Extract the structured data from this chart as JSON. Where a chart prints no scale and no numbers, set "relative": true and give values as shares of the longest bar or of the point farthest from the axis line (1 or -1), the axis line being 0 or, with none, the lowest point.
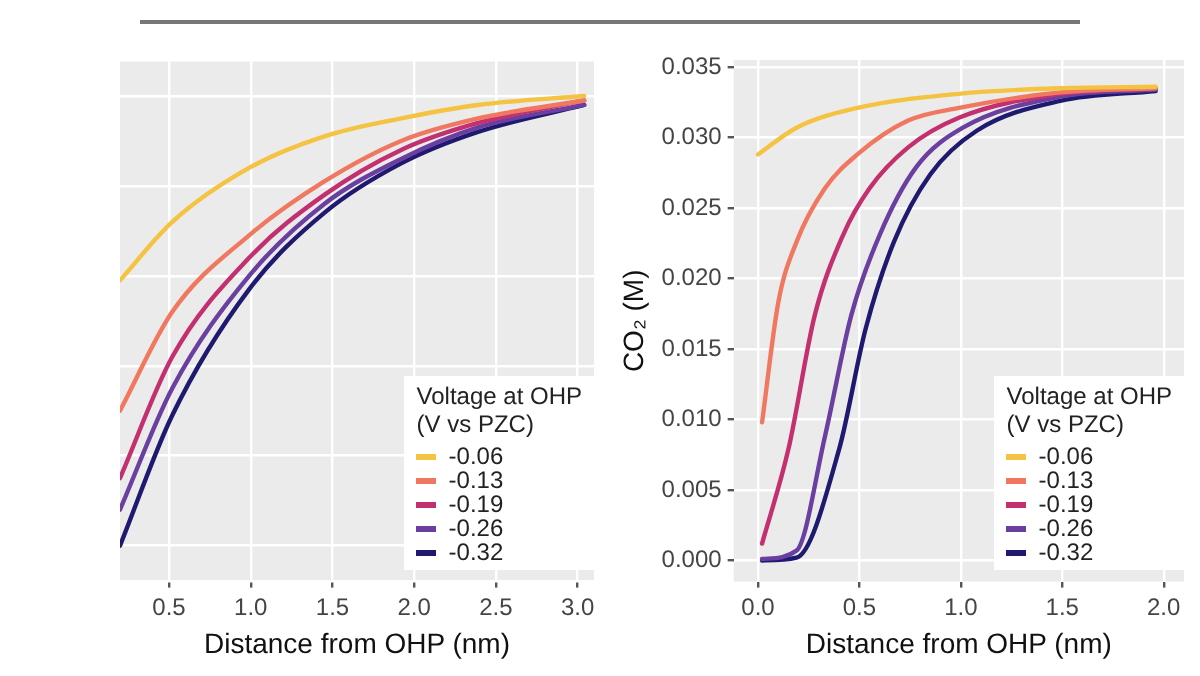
{
  "chart_data": [
    {
      "type": "line",
      "relative": true,
      "xlabel": "Distance from OHP (nm)",
      "legend_title": "Voltage at OHP\n(V vs PZC)",
      "legend": "bottom right",
      "grid": true,
      "marker": "none",
      "line_style": "solid",
      "xlim": [
        0.2,
        3.1
      ],
      "xticks": [
        0.5,
        {
          "value": 1,
          "label": "1.0"
        },
        1.5,
        {
          "value": 2,
          "label": "2.0"
        },
        2.5,
        {
          "value": 3,
          "label": "3.0"
        }
      ],
      "x": [
        0.2,
        0.52,
        0.99,
        1.45,
        1.92,
        2.39,
        3.04
      ],
      "series": [
        {
          "name": "-0.06",
          "color": "#f5c342",
          "values": [
            0.59,
            0.72,
            0.84,
            0.91,
            0.95,
            0.98,
            1.0
          ]
        },
        {
          "name": "-0.13",
          "color": "#f07860",
          "values": [
            0.3,
            0.52,
            0.69,
            0.81,
            0.9,
            0.95,
            0.99
          ]
        },
        {
          "name": "-0.19",
          "color": "#c2306f",
          "values": [
            0.15,
            0.42,
            0.64,
            0.78,
            0.88,
            0.94,
            0.99
          ]
        },
        {
          "name": "-0.26",
          "color": "#6a3fa0",
          "values": [
            0.08,
            0.35,
            0.6,
            0.76,
            0.86,
            0.93,
            0.98
          ]
        },
        {
          "name": "-0.32",
          "color": "#1f1a70",
          "values": [
            0.0,
            0.29,
            0.57,
            0.74,
            0.85,
            0.92,
            0.98
          ]
        }
      ]
    },
    {
      "type": "line",
      "xlabel": "Distance from OHP (nm)",
      "ylabel": "CO₂ (M)",
      "legend_title": "Voltage at OHP\n(V vs PZC)",
      "legend": "bottom right",
      "grid": true,
      "marker": "none",
      "line_style": "solid",
      "xlim": [
        -0.12,
        2.1
      ],
      "xticks": [
        {
          "value": 0,
          "label": "0.0"
        },
        0.5,
        {
          "value": 1,
          "label": "1.0"
        },
        1.5,
        {
          "value": 2,
          "label": "2.0"
        }
      ],
      "ylim": [
        -0.0015,
        0.0355
      ],
      "yticks": [
        {
          "value": 0,
          "label": "0.000"
        },
        0.005,
        {
          "value": 0.01,
          "label": "0.010"
        },
        0.015,
        {
          "value": 0.02,
          "label": "0.020"
        },
        0.025,
        {
          "value": 0.03,
          "label": "0.030"
        },
        0.035
      ],
      "series": [
        {
          "name": "-0.06",
          "color": "#f5c342",
          "x": [
            0,
            0.19,
            0.49,
            0.99,
            1.49,
            1.96
          ],
          "values": [
            0.0288,
            0.0307,
            0.0321,
            0.0331,
            0.0335,
            0.0336
          ]
        },
        {
          "name": "-0.13",
          "color": "#f07860",
          "x": [
            0.02,
            0.1,
            0.19,
            0.33,
            0.49,
            0.74,
            0.99,
            1.49,
            1.96
          ],
          "values": [
            0.0098,
            0.0183,
            0.0226,
            0.0264,
            0.0288,
            0.0312,
            0.0321,
            0.0332,
            0.0335
          ]
        },
        {
          "name": "-0.19",
          "color": "#c2306f",
          "x": [
            0.02,
            0.15,
            0.28,
            0.42,
            0.55,
            0.74,
            0.99,
            1.49,
            1.96
          ],
          "values": [
            0.0012,
            0.0079,
            0.0174,
            0.0231,
            0.0264,
            0.0293,
            0.0314,
            0.0331,
            0.0335
          ]
        },
        {
          "name": "-0.26",
          "color": "#6a3fa0",
          "x": [
            0.02,
            0.19,
            0.33,
            0.46,
            0.6,
            0.78,
            1.01,
            1.49,
            1.96
          ],
          "values": [
            0.0001,
            0.0007,
            0.0088,
            0.0174,
            0.0231,
            0.0279,
            0.0307,
            0.0329,
            0.0334
          ]
        },
        {
          "name": "-0.32",
          "color": "#1f1a70",
          "x": [
            0.02,
            0.19,
            0.4,
            0.53,
            0.67,
            0.85,
            1.08,
            1.49,
            1.96
          ],
          "values": [
            0.0,
            0.0002,
            0.0079,
            0.0164,
            0.0226,
            0.0274,
            0.0305,
            0.0326,
            0.0333
          ]
        }
      ]
    }
  ]
}
